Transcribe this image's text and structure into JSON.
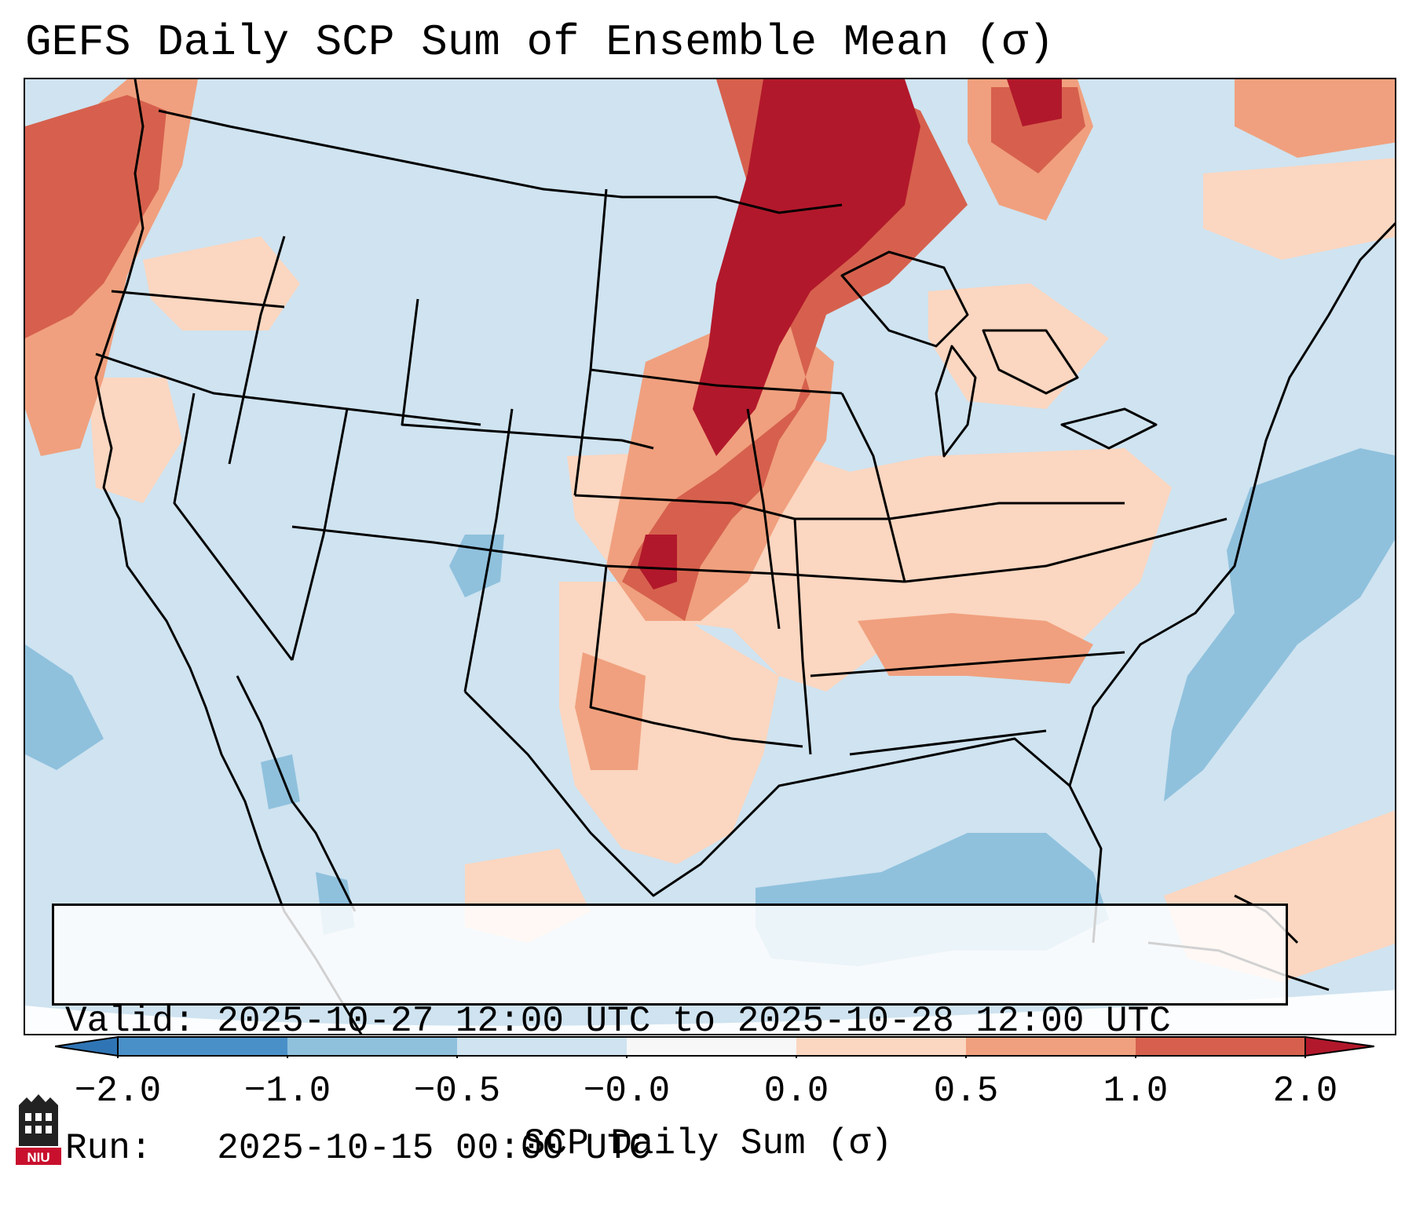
{
  "title": "GEFS Daily SCP Sum of Ensemble Mean (σ)",
  "info": {
    "valid_label": "Valid:",
    "valid_value": "2025-10-27 12:00 UTC to 2025-10-28 12:00 UTC",
    "run_label": "Run:",
    "run_value": "2025-10-15 00:00 UTC"
  },
  "colorbar": {
    "label": "SCP Daily Sum (σ)",
    "ticks": [
      "−2.0",
      "−1.0",
      "−0.5",
      "−0.0",
      "0.0",
      "0.5",
      "1.0",
      "2.0"
    ],
    "bins": [
      {
        "range": "<-2.0",
        "color": "#2f75b5"
      },
      {
        "range": "-2.0 to -1.0",
        "color": "#4a90c8"
      },
      {
        "range": "-1.0 to -0.5",
        "color": "#8fc1dd"
      },
      {
        "range": "-0.5 to -0.0",
        "color": "#cfe3f0"
      },
      {
        "range": "-0.0 to 0.0",
        "color": "#f7f7f7"
      },
      {
        "range": "0.0 to 0.5",
        "color": "#fbd6c0"
      },
      {
        "range": "0.5 to 1.0",
        "color": "#f0a07e"
      },
      {
        "range": "1.0 to 2.0",
        "color": "#d6604d"
      },
      {
        "range": ">2.0",
        "color": "#b2182b"
      }
    ]
  },
  "logo": {
    "text": "NIU",
    "icon": "niu-logo-icon"
  },
  "colors": {
    "neutral_blue": "#cfe3f0",
    "light_blue": "#8fc1dd",
    "light_red": "#fbd6c0",
    "mid_red": "#f0a07e",
    "red": "#d6604d",
    "dark_red": "#b2182b"
  }
}
